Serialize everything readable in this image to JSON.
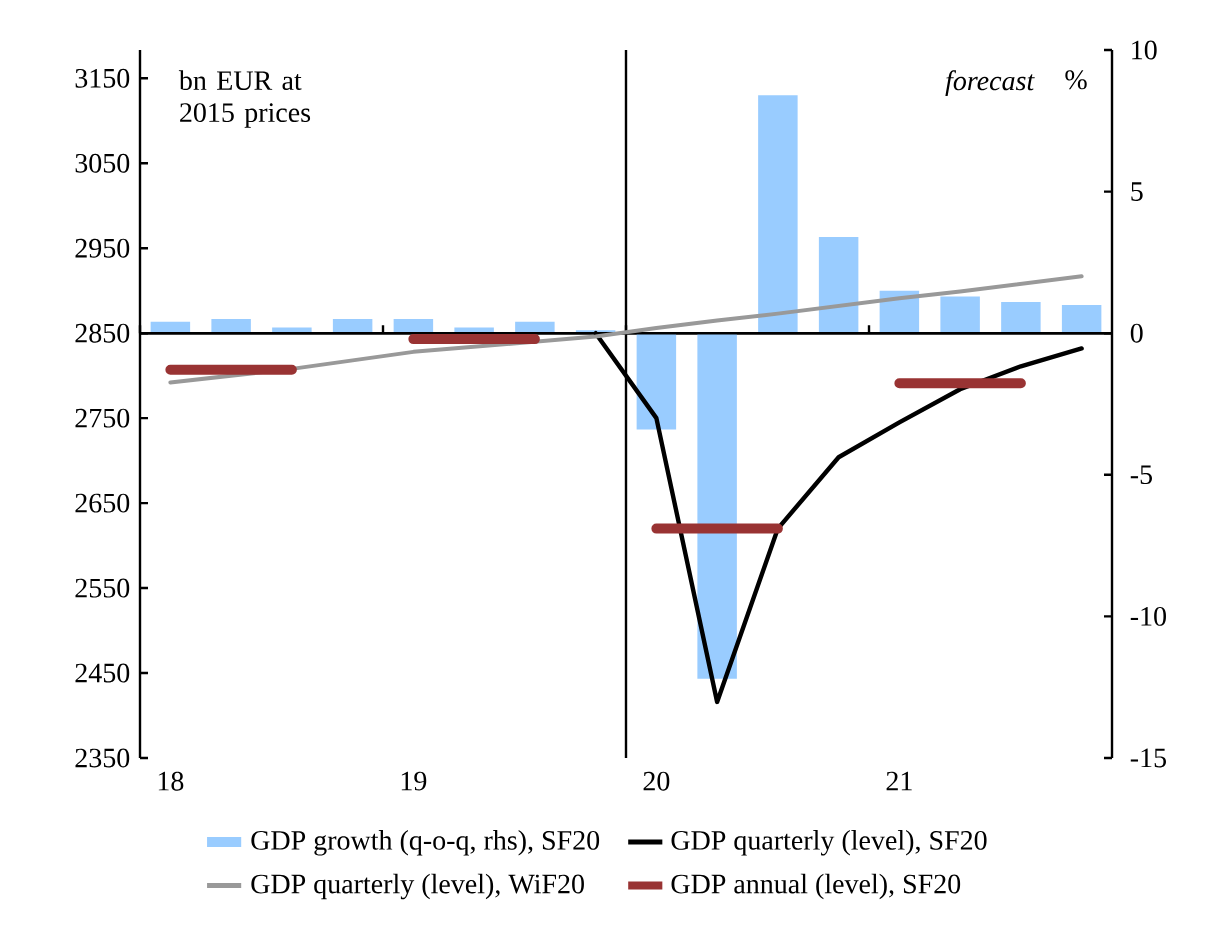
{
  "chart_data": {
    "type": "line",
    "categories": [
      "18",
      null,
      null,
      null,
      "19",
      null,
      null,
      null,
      "20",
      null,
      null,
      null,
      "21",
      null,
      null,
      null
    ],
    "series": [
      {
        "name": "GDP growth (q-o-q, rhs), SF20",
        "type": "bar",
        "axis": "y2",
        "color": "#99ccff",
        "values": [
          0.4,
          0.5,
          0.2,
          0.5,
          0.5,
          0.2,
          0.4,
          0.1,
          -3.4,
          -12.2,
          8.4,
          3.4,
          1.5,
          1.3,
          1.1,
          1.0
        ]
      },
      {
        "name": "GDP quarterly (level), SF20",
        "color": "#000000",
        "values": [
          null,
          null,
          null,
          null,
          null,
          null,
          null,
          2850,
          2750,
          2416,
          2620,
          2704,
          2745,
          2784,
          2811,
          2832
        ]
      },
      {
        "name": "GDP quarterly (level), WiF20",
        "color": "#999999",
        "values": [
          2792,
          2800,
          2808,
          2818,
          2828,
          2834,
          2840,
          2846,
          2856,
          2865,
          2873,
          2882,
          2891,
          2899,
          2908,
          2917
        ]
      },
      {
        "name": "GDP annual (level), SF20",
        "color": "#993333",
        "values": [
          2807,
          2807,
          2807,
          null,
          2843,
          2843,
          2843,
          null,
          2620,
          2620,
          2620,
          null,
          2791,
          2791,
          2791,
          null
        ]
      }
    ],
    "ylim": [
      2350,
      3183.3
    ],
    "yticks": [
      2350,
      2450,
      2550,
      2650,
      2750,
      2850,
      2950,
      3050,
      3150
    ],
    "y2lim": [
      -15,
      10
    ],
    "y2ticks": [
      -15,
      -10,
      -5,
      0,
      5,
      10
    ],
    "y2label": "%",
    "annotations": [
      "bn EUR at 2015 prices",
      "forecast"
    ],
    "legend": "bottom",
    "marker": "none"
  }
}
